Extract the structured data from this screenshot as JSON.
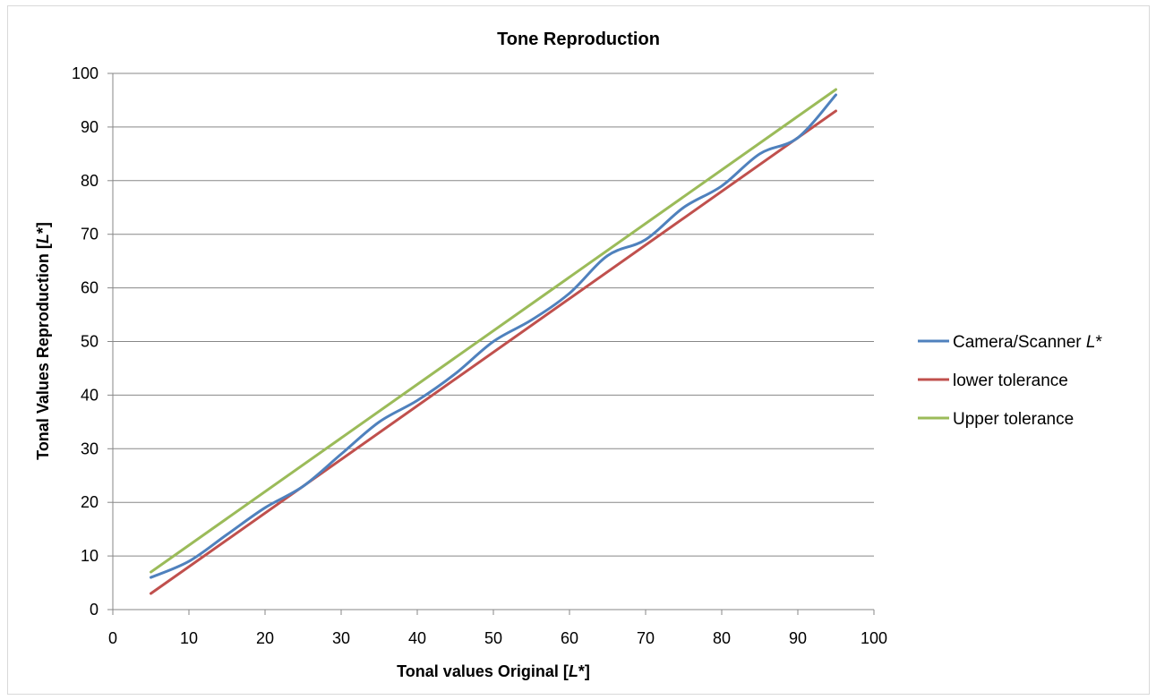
{
  "chart_data": {
    "type": "line",
    "title": "Tone Reproduction",
    "xlabel": "Tonal values Original [L*]",
    "xlabel_parts": {
      "pre": "Tonal values Original [",
      "ital": "L",
      "post": "*]"
    },
    "ylabel": "Tonal Values Reproduction [L*]",
    "ylabel_parts": {
      "pre": "Tonal Values Reproduction [",
      "ital": "L",
      "post": "*]"
    },
    "xlim": [
      0,
      100
    ],
    "ylim": [
      0,
      100
    ],
    "xticks": [
      "0",
      "10",
      "20",
      "30",
      "40",
      "50",
      "60",
      "70",
      "80",
      "90",
      "100"
    ],
    "yticks": [
      "0",
      "10",
      "20",
      "30",
      "40",
      "50",
      "60",
      "70",
      "80",
      "90",
      "100"
    ],
    "grid": "horizontal",
    "legend_position": "right",
    "series": [
      {
        "name": "Camera/Scanner L*",
        "name_parts": {
          "pre": "Camera/Scanner ",
          "ital": "L",
          "post": "*"
        },
        "color": "#4F81BD",
        "x": [
          5,
          10,
          15,
          20,
          25,
          30,
          35,
          40,
          45,
          50,
          55,
          60,
          65,
          70,
          75,
          80,
          85,
          90,
          95
        ],
        "y": [
          6,
          9,
          14,
          19,
          23,
          29,
          35,
          39,
          44,
          50,
          54,
          59,
          66,
          69,
          75,
          79,
          85,
          88,
          96
        ]
      },
      {
        "name": "lower tolerance",
        "color": "#C0504D",
        "x": [
          5,
          95
        ],
        "y": [
          3,
          93
        ]
      },
      {
        "name": "Upper tolerance",
        "color": "#9BBB59",
        "x": [
          5,
          95
        ],
        "y": [
          7,
          97
        ]
      }
    ]
  }
}
